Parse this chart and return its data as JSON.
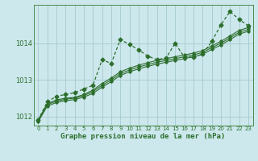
{
  "title": "Graphe pression niveau de la mer (hPa)",
  "background_color": "#cce8ec",
  "grid_color": "#aacdd4",
  "line_color": "#2d6e2d",
  "ylim": [
    1011.75,
    1015.05
  ],
  "xlim": [
    -0.5,
    23.5
  ],
  "yticks": [
    1012,
    1013,
    1014
  ],
  "xticks": [
    0,
    1,
    2,
    3,
    4,
    5,
    6,
    7,
    8,
    9,
    10,
    11,
    12,
    13,
    14,
    15,
    16,
    17,
    18,
    19,
    20,
    21,
    22,
    23
  ],
  "series_dotted": [
    1011.9,
    1012.4,
    1012.55,
    1012.6,
    1012.65,
    1012.75,
    1012.85,
    1013.55,
    1013.45,
    1014.1,
    1013.97,
    1013.82,
    1013.65,
    1013.55,
    1013.6,
    1014.0,
    1013.62,
    1013.62,
    1013.7,
    1014.05,
    1014.5,
    1014.87,
    1014.65,
    1014.48
  ],
  "series_smooth": [
    [
      1011.9,
      1012.35,
      1012.45,
      1012.5,
      1012.52,
      1012.6,
      1012.72,
      1012.9,
      1013.05,
      1013.22,
      1013.32,
      1013.4,
      1013.47,
      1013.53,
      1013.58,
      1013.63,
      1013.68,
      1013.73,
      1013.8,
      1013.93,
      1014.05,
      1014.2,
      1014.35,
      1014.43
    ],
    [
      1011.88,
      1012.32,
      1012.42,
      1012.47,
      1012.5,
      1012.57,
      1012.68,
      1012.85,
      1013.0,
      1013.17,
      1013.27,
      1013.35,
      1013.42,
      1013.48,
      1013.53,
      1013.58,
      1013.63,
      1013.68,
      1013.75,
      1013.88,
      1014.0,
      1014.15,
      1014.3,
      1014.38
    ],
    [
      1011.85,
      1012.28,
      1012.38,
      1012.43,
      1012.46,
      1012.53,
      1012.63,
      1012.8,
      1012.95,
      1013.12,
      1013.22,
      1013.3,
      1013.37,
      1013.43,
      1013.48,
      1013.53,
      1013.58,
      1013.63,
      1013.7,
      1013.83,
      1013.95,
      1014.1,
      1014.25,
      1014.33
    ]
  ]
}
